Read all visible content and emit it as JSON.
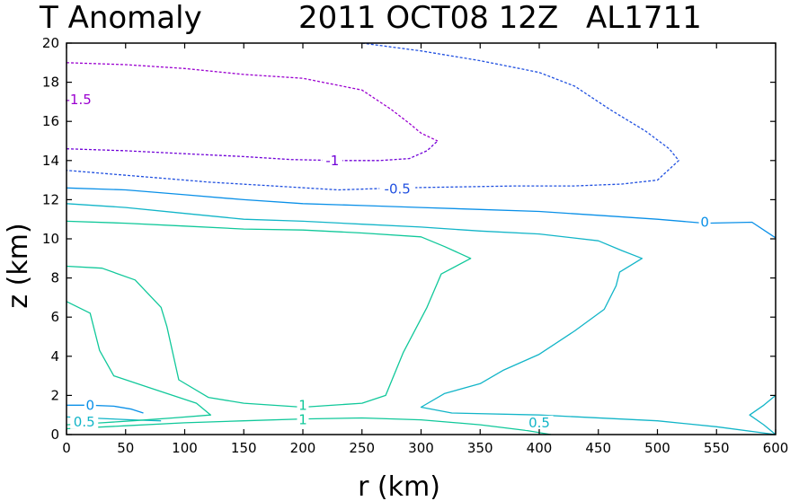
{
  "chart_data": {
    "type": "contour",
    "title_parts": [
      "T Anomaly",
      "2011 OCT08 12Z",
      "AL1711"
    ],
    "xlabel": "r (km)",
    "ylabel": "z (km)",
    "xlim": [
      0,
      600
    ],
    "ylim": [
      0,
      20
    ],
    "x_ticks": [
      0,
      50,
      100,
      150,
      200,
      250,
      300,
      350,
      400,
      450,
      500,
      550,
      600
    ],
    "y_ticks": [
      0,
      2,
      4,
      6,
      8,
      10,
      12,
      14,
      16,
      18,
      20
    ],
    "grid": false,
    "colors": {
      "-1.5": "#9b00d0",
      "-1": "#7000d8",
      "-0.5": "#2050e0",
      "0": "#0a90e8",
      "0.5": "#12b5c8",
      "1": "#10c89a"
    },
    "contours": [
      {
        "level": "-1.5",
        "dashed": true,
        "points": [
          [
            0,
            19
          ],
          [
            50,
            18.9
          ],
          [
            100,
            18.7
          ],
          [
            150,
            18.4
          ],
          [
            200,
            18.2
          ],
          [
            250,
            17.6
          ],
          [
            275,
            16.6
          ],
          [
            290,
            15.9
          ],
          [
            300,
            15.4
          ],
          [
            314,
            15
          ]
        ]
      },
      {
        "level": "-1",
        "dashed": true,
        "points": [
          [
            0,
            14.6
          ],
          [
            50,
            14.5
          ],
          [
            100,
            14.35
          ],
          [
            150,
            14.2
          ],
          [
            190,
            14.05
          ],
          [
            230,
            14
          ],
          [
            265,
            14
          ],
          [
            290,
            14.1
          ],
          [
            305,
            14.5
          ],
          [
            314,
            15
          ]
        ]
      },
      {
        "level": "-0.5",
        "dashed": true,
        "points": [
          [
            250,
            20
          ],
          [
            300,
            19.6
          ],
          [
            350,
            19.1
          ],
          [
            400,
            18.5
          ],
          [
            430,
            17.8
          ],
          [
            460,
            16.6
          ],
          [
            490,
            15.5
          ],
          [
            510,
            14.6
          ],
          [
            518,
            14
          ],
          [
            500,
            13
          ],
          [
            470,
            12.8
          ],
          [
            430,
            12.7
          ],
          [
            380,
            12.7
          ],
          [
            330,
            12.65
          ],
          [
            280,
            12.6
          ],
          [
            230,
            12.5
          ],
          [
            175,
            12.7
          ],
          [
            120,
            12.9
          ],
          [
            80,
            13.1
          ],
          [
            40,
            13.3
          ],
          [
            0,
            13.5
          ]
        ]
      },
      {
        "level": "0",
        "dashed": false,
        "points": [
          [
            0,
            12.6
          ],
          [
            50,
            12.5
          ],
          [
            100,
            12.25
          ],
          [
            150,
            12.0
          ],
          [
            200,
            11.8
          ],
          [
            250,
            11.7
          ],
          [
            300,
            11.6
          ],
          [
            350,
            11.5
          ],
          [
            400,
            11.4
          ],
          [
            450,
            11.2
          ],
          [
            500,
            11.0
          ],
          [
            540,
            10.8
          ],
          [
            580,
            10.85
          ],
          [
            600,
            10.05
          ]
        ]
      },
      {
        "level": "0",
        "dashed": false,
        "points": [
          [
            0,
            1.5
          ],
          [
            20,
            1.5
          ],
          [
            40,
            1.45
          ],
          [
            55,
            1.3
          ],
          [
            65,
            1.1
          ]
        ]
      },
      {
        "level": "0.5",
        "dashed": false,
        "points": [
          [
            0,
            11.8
          ],
          [
            50,
            11.6
          ],
          [
            100,
            11.3
          ],
          [
            150,
            11.0
          ],
          [
            200,
            10.9
          ],
          [
            250,
            10.75
          ],
          [
            300,
            10.6
          ],
          [
            350,
            10.4
          ],
          [
            400,
            10.25
          ],
          [
            450,
            9.9
          ],
          [
            470,
            9.4
          ],
          [
            487,
            9.0
          ],
          [
            468,
            8.3
          ],
          [
            465,
            7.6
          ],
          [
            455,
            6.4
          ],
          [
            430,
            5.3
          ],
          [
            400,
            4.1
          ],
          [
            370,
            3.3
          ],
          [
            350,
            2.6
          ],
          [
            320,
            2.1
          ],
          [
            300,
            1.4
          ],
          [
            326,
            1.1
          ],
          [
            400,
            1.0
          ],
          [
            500,
            0.7
          ],
          [
            550,
            0.4
          ],
          [
            600,
            0
          ]
        ]
      },
      {
        "level": "0.5",
        "dashed": false,
        "points": [
          [
            600,
            2
          ],
          [
            590,
            1.5
          ],
          [
            578,
            1.0
          ],
          [
            590,
            0.5
          ],
          [
            600,
            0
          ]
        ]
      },
      {
        "level": "0.5",
        "dashed": false,
        "points": [
          [
            0,
            0.9
          ],
          [
            30,
            0.82
          ],
          [
            60,
            0.74
          ],
          [
            80,
            0.7
          ]
        ]
      },
      {
        "level": "1",
        "dashed": false,
        "points": [
          [
            0,
            10.9
          ],
          [
            50,
            10.8
          ],
          [
            100,
            10.65
          ],
          [
            150,
            10.5
          ],
          [
            200,
            10.45
          ],
          [
            250,
            10.3
          ],
          [
            300,
            10.1
          ],
          [
            320,
            9.6
          ],
          [
            342,
            9.0
          ],
          [
            317,
            8.2
          ],
          [
            305,
            6.5
          ],
          [
            285,
            4.2
          ],
          [
            270,
            2.0
          ],
          [
            250,
            1.6
          ],
          [
            200,
            1.4
          ],
          [
            150,
            1.6
          ],
          [
            120,
            1.9
          ],
          [
            95,
            2.8
          ],
          [
            85,
            5.5
          ],
          [
            80,
            6.5
          ],
          [
            58,
            7.9
          ],
          [
            30,
            8.5
          ],
          [
            0,
            8.6
          ]
        ]
      },
      {
        "level": "1",
        "dashed": false,
        "points": [
          [
            0,
            6.8
          ],
          [
            20,
            6.2
          ],
          [
            28,
            4.3
          ],
          [
            40,
            3.0
          ],
          [
            70,
            2.4
          ],
          [
            110,
            1.6
          ],
          [
            122,
            1.0
          ],
          [
            90,
            0.85
          ],
          [
            60,
            0.72
          ],
          [
            30,
            0.6
          ],
          [
            0,
            0.5
          ]
        ]
      },
      {
        "level": "1",
        "dashed": false,
        "points": [
          [
            0,
            0.3
          ],
          [
            50,
            0.45
          ],
          [
            100,
            0.6
          ],
          [
            150,
            0.7
          ],
          [
            200,
            0.8
          ],
          [
            250,
            0.85
          ],
          [
            300,
            0.75
          ],
          [
            350,
            0.5
          ],
          [
            390,
            0.2
          ],
          [
            410,
            0
          ]
        ]
      }
    ],
    "labels": [
      {
        "text": "-1.5",
        "level": "-1.5",
        "x": 10,
        "y": 17.1
      },
      {
        "text": "-1",
        "level": "-1",
        "x": 225,
        "y": 14.0
      },
      {
        "text": "-0.5",
        "level": "-0.5",
        "x": 280,
        "y": 12.55
      },
      {
        "text": "0",
        "level": "0",
        "x": 540,
        "y": 10.85
      },
      {
        "text": "0",
        "level": "0",
        "x": 20,
        "y": 1.5
      },
      {
        "text": "0.5",
        "level": "0.5",
        "x": 400,
        "y": 0.6
      },
      {
        "text": "0.5",
        "level": "0.5",
        "x": 15,
        "y": 0.65
      },
      {
        "text": "1",
        "level": "1",
        "x": 200,
        "y": 1.5
      },
      {
        "text": "1",
        "level": "1",
        "x": 200,
        "y": 0.75
      }
    ]
  }
}
